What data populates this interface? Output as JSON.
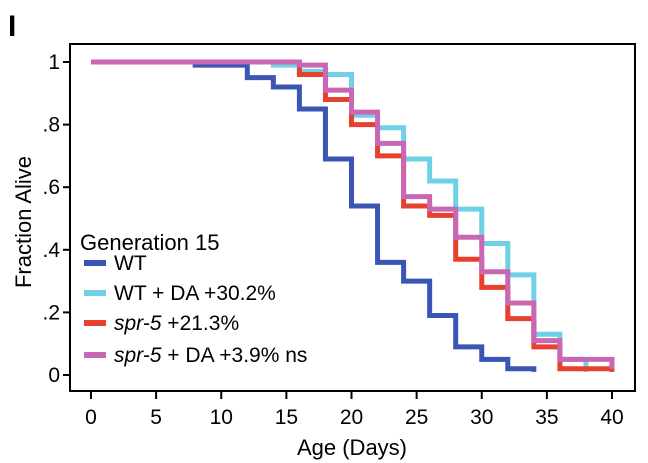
{
  "panel_letter": "I",
  "chart_data": {
    "type": "line",
    "step": true,
    "xlabel": "Age (Days)",
    "ylabel": "Fraction Alive",
    "xlim": [
      0,
      40
    ],
    "ylim": [
      0,
      1
    ],
    "xticks": [
      0,
      5,
      10,
      15,
      20,
      25,
      30,
      35,
      40
    ],
    "xtick_labels": [
      "0",
      "5",
      "10",
      "15",
      "20",
      "25",
      "30",
      "35",
      "40"
    ],
    "yticks": [
      0,
      0.2,
      0.4,
      0.6,
      0.8,
      1
    ],
    "ytick_labels": [
      "0",
      ".2",
      ".4",
      ".6",
      ".8",
      "1"
    ],
    "grid": false,
    "legend": {
      "title": "Generation 15",
      "position": "bottom-left",
      "entries": [
        {
          "parts": [
            {
              "text": "WT",
              "italic": false
            }
          ]
        },
        {
          "parts": [
            {
              "text": "WT + DA +30.2%",
              "italic": false
            }
          ]
        },
        {
          "parts": [
            {
              "text": "spr-5",
              "italic": true
            },
            {
              "text": " +21.3%",
              "italic": false
            }
          ]
        },
        {
          "parts": [
            {
              "text": "spr-5",
              "italic": true
            },
            {
              "text": " + DA +3.9% ns",
              "italic": false
            }
          ]
        }
      ]
    },
    "series": [
      {
        "color": "#3a55b4",
        "x": [
          0,
          8,
          12,
          14,
          16,
          18,
          20,
          22,
          24,
          26,
          28,
          30,
          32,
          34
        ],
        "y": [
          1,
          0.99,
          0.95,
          0.92,
          0.85,
          0.69,
          0.54,
          0.36,
          0.3,
          0.19,
          0.09,
          0.05,
          0.02,
          0.01
        ]
      },
      {
        "color": "#6fd0e6",
        "x": [
          0,
          14,
          16,
          18,
          20,
          22,
          24,
          26,
          28,
          30,
          32,
          34,
          36,
          38
        ],
        "y": [
          1,
          0.99,
          0.97,
          0.96,
          0.83,
          0.79,
          0.69,
          0.62,
          0.53,
          0.42,
          0.32,
          0.13,
          0.05,
          0.01
        ]
      },
      {
        "color": "#e8402e",
        "x": [
          0,
          16,
          18,
          20,
          22,
          24,
          26,
          28,
          30,
          32,
          34,
          36,
          40
        ],
        "y": [
          1,
          0.96,
          0.88,
          0.8,
          0.7,
          0.54,
          0.51,
          0.37,
          0.28,
          0.18,
          0.09,
          0.02,
          0.01
        ]
      },
      {
        "color": "#c868b4",
        "x": [
          0,
          16,
          18,
          20,
          22,
          24,
          26,
          28,
          30,
          32,
          34,
          36,
          40
        ],
        "y": [
          1,
          0.99,
          0.91,
          0.84,
          0.74,
          0.57,
          0.53,
          0.44,
          0.33,
          0.23,
          0.11,
          0.05,
          0.02
        ]
      }
    ]
  }
}
